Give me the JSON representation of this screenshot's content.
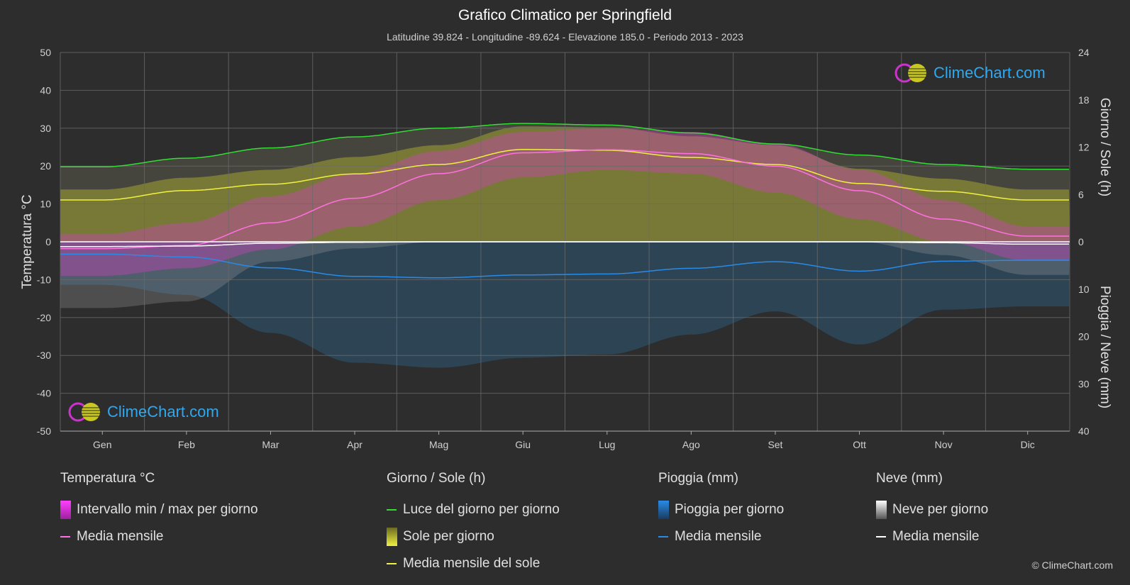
{
  "header": {
    "title": "Grafico Climatico per Springfield",
    "subtitle": "Latitudine 39.824 - Longitudine -89.624 - Elevazione 185.0 - Periodo 2013 - 2023"
  },
  "brand": {
    "text": "ClimeChart.com",
    "copyright": "© ClimeChart.com"
  },
  "colors": {
    "background": "#2d2d2d",
    "temp_range": "#d040c0",
    "temp_mean": "#ff70e0",
    "daylight": "#33dd33",
    "sunshine": "#b8b830",
    "sunshine_mean": "#f0f040",
    "rain": "#2f6fa0",
    "rain_mean": "#2a8ae8",
    "snow": "#9a9a9a",
    "snow_mean": "#ffffff",
    "brand_text": "#2ea8f0"
  },
  "chart_data": {
    "type": "area",
    "categories": [
      "Gen",
      "Feb",
      "Mar",
      "Apr",
      "Mag",
      "Giu",
      "Lug",
      "Ago",
      "Set",
      "Ott",
      "Nov",
      "Dic"
    ],
    "axes": {
      "left": {
        "label": "Temperatura °C",
        "min": -50,
        "max": 50,
        "ticks": [
          50,
          40,
          30,
          20,
          10,
          0,
          -10,
          -20,
          -30,
          -40,
          -50
        ]
      },
      "right_top": {
        "label": "Giorno / Sole (h)",
        "min": 0,
        "max": 24,
        "ticks": [
          24,
          18,
          12,
          6,
          0
        ]
      },
      "right_bottom": {
        "label": "Pioggia / Neve (mm)",
        "min": 0,
        "max": 40,
        "ticks": [
          0,
          10,
          20,
          30,
          40
        ]
      }
    },
    "grid": true,
    "series": [
      {
        "name": "Luce del giorno per giorno",
        "axis": "hours",
        "values": [
          9.5,
          10.6,
          11.9,
          13.3,
          14.4,
          15.0,
          14.8,
          13.8,
          12.4,
          11.0,
          9.8,
          9.2
        ]
      },
      {
        "name": "Media mensile del sole",
        "axis": "hours",
        "values": [
          5.3,
          6.5,
          7.3,
          8.6,
          9.8,
          11.7,
          11.6,
          10.7,
          9.8,
          7.4,
          6.4,
          5.3
        ]
      },
      {
        "name": "Media mensile",
        "group": "Temperatura °C",
        "axis": "temperature",
        "values": [
          -1.8,
          -1.0,
          5.0,
          11.5,
          18.0,
          23.5,
          24.3,
          23.3,
          20.0,
          13.5,
          6.0,
          1.5
        ]
      },
      {
        "name": "Intervallo min / max per giorno (max)",
        "axis": "temperature",
        "values": [
          2,
          5,
          12,
          18,
          24,
          29,
          30,
          29,
          26,
          19,
          11,
          4
        ]
      },
      {
        "name": "Intervallo min / max per giorno (min)",
        "axis": "temperature",
        "values": [
          -9,
          -7,
          -2,
          4,
          11,
          17,
          19,
          18,
          13,
          6,
          0,
          -5
        ]
      },
      {
        "name": "Media mensile",
        "group": "Pioggia (mm)",
        "axis": "precip",
        "values": [
          2.6,
          3.2,
          5.5,
          7.3,
          7.6,
          7.0,
          6.8,
          5.6,
          4.2,
          6.2,
          4.1,
          3.9
        ]
      },
      {
        "name": "Media mensile",
        "group": "Neve (mm)",
        "axis": "precip",
        "values": [
          1.0,
          0.9,
          0.3,
          0.1,
          0.0,
          0.0,
          0.0,
          0.0,
          0.0,
          0.0,
          0.2,
          0.5
        ]
      }
    ]
  },
  "legend": {
    "groups": [
      {
        "title": "Temperatura °C",
        "items": [
          {
            "label": "Intervallo min / max per giorno",
            "kind": "box-magenta"
          },
          {
            "label": "Media mensile",
            "kind": "line-pink"
          }
        ]
      },
      {
        "title": "Giorno / Sole (h)",
        "items": [
          {
            "label": "Luce del giorno per giorno",
            "kind": "line-green"
          },
          {
            "label": "Sole per giorno",
            "kind": "box-yellow"
          },
          {
            "label": "Media mensile del sole",
            "kind": "line-yellow"
          }
        ]
      },
      {
        "title": "Pioggia (mm)",
        "items": [
          {
            "label": "Pioggia per giorno",
            "kind": "box-blue"
          },
          {
            "label": "Media mensile",
            "kind": "line-blue"
          }
        ]
      },
      {
        "title": "Neve (mm)",
        "items": [
          {
            "label": "Neve per giorno",
            "kind": "box-white"
          },
          {
            "label": "Media mensile",
            "kind": "line-white"
          }
        ]
      }
    ]
  }
}
